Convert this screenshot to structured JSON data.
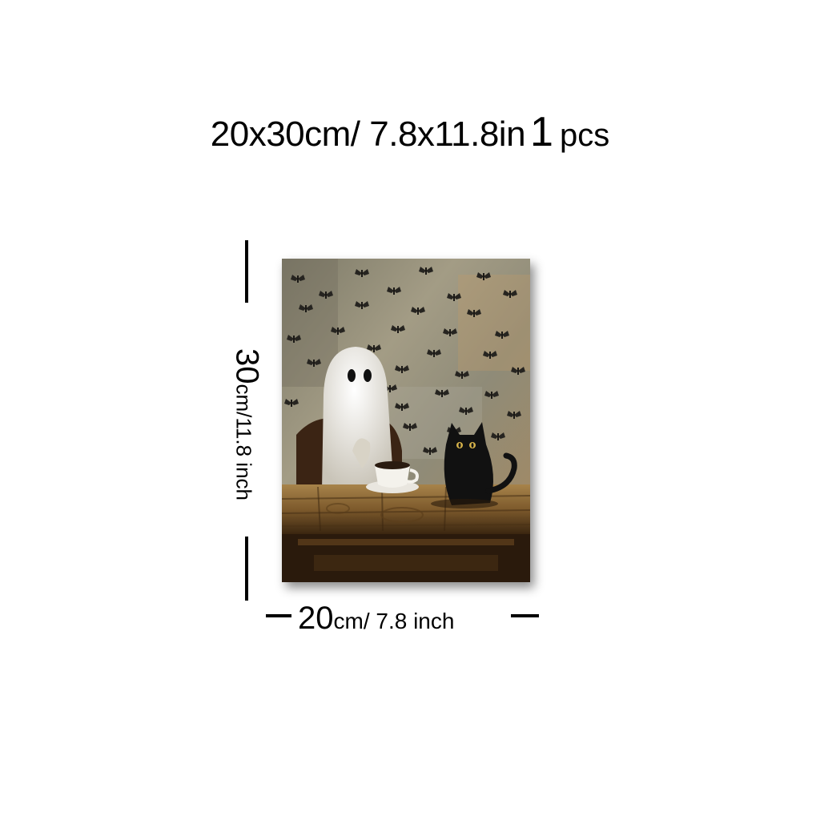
{
  "title": {
    "size": "20x30cm/ 7.8x11.8in",
    "quantity_number": "1",
    "quantity_unit": "pcs"
  },
  "dimensions": {
    "height_value": "30",
    "height_unit": "cm/11.8 inch",
    "width_value": "20",
    "width_unit": "cm/ 7.8 inch"
  },
  "artwork": {
    "subject": "ghost with coffee cup and black cat at wooden table, moth pattern wall",
    "colors": {
      "wall": "#8e8873",
      "table": "#8a6a3a",
      "ghost": "#eeeae2",
      "cat": "#111111"
    }
  }
}
